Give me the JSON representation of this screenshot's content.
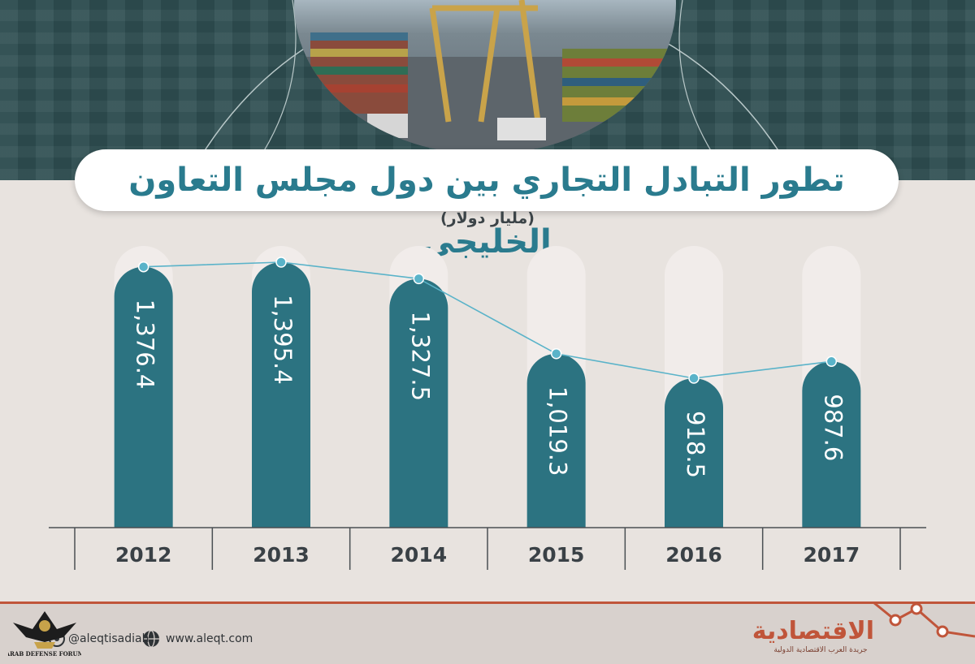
{
  "title": "تطور التبادل التجاري بين دول مجلس التعاون الخليجي",
  "unit": "(مليار دولار)",
  "chart_data": {
    "type": "bar",
    "title": "تطور التبادل التجاري بين دول مجلس التعاون الخليجي",
    "subtitle": "(مليار دولار)",
    "categories": [
      "2012",
      "2013",
      "2014",
      "2015",
      "2016",
      "2017"
    ],
    "values": [
      1376.4,
      1395.4,
      1327.5,
      1019.3,
      918.5,
      987.6
    ],
    "value_labels": [
      "1,376.4",
      "1,395.4",
      "1,327.5",
      "1,019.3",
      "918.5",
      "987.6"
    ],
    "overlay": "line",
    "grid": false,
    "colors": {
      "bar": "#2c7381",
      "line": "#5ab3c9",
      "track": "#f1ecea"
    }
  },
  "footer": {
    "social_handle": "@aleqtisadiah",
    "website": "www.aleqt.com",
    "brand_name": "الاقتصادية",
    "brand_tagline": "جريدة العرب الاقتصادية الدولية",
    "watermark": "ARAB DEFENSE FORUM"
  },
  "colors": {
    "header": "#2f4f52",
    "title_text": "#2a7b8e",
    "accent": "#c0553a",
    "background": "#e8e3df"
  },
  "icons": [
    "globe-icon",
    "at-icon",
    "trend-line-icon",
    "eagle-logo"
  ]
}
